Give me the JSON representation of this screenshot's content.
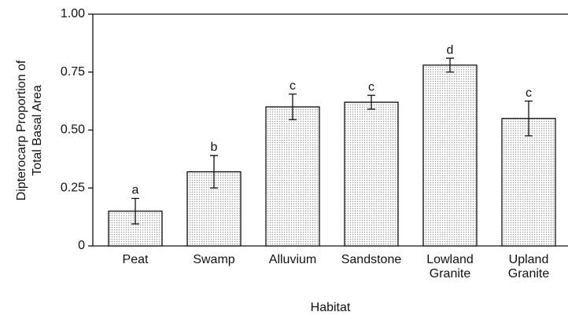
{
  "chart_data": {
    "type": "bar",
    "xlabel": "Habitat",
    "ylabel": [
      "Dipterocarp Proportion of",
      "Total Basal Area"
    ],
    "categories": [
      "Peat",
      "Swamp",
      "Alluvium",
      "Sandstone",
      "Lowland Granite",
      "Upland Granite"
    ],
    "values": [
      0.15,
      0.32,
      0.6,
      0.62,
      0.78,
      0.55
    ],
    "errors": [
      0.055,
      0.07,
      0.055,
      0.03,
      0.03,
      0.075
    ],
    "significance_letters": [
      "a",
      "b",
      "c",
      "c",
      "d",
      "c"
    ],
    "ylim": [
      0,
      1
    ],
    "yticks": [
      0,
      0.25,
      {
        "value": 0.5,
        "label": "0.50"
      },
      0.75,
      {
        "value": 1,
        "label": "1.00"
      }
    ],
    "color": "#9a9a9a"
  }
}
